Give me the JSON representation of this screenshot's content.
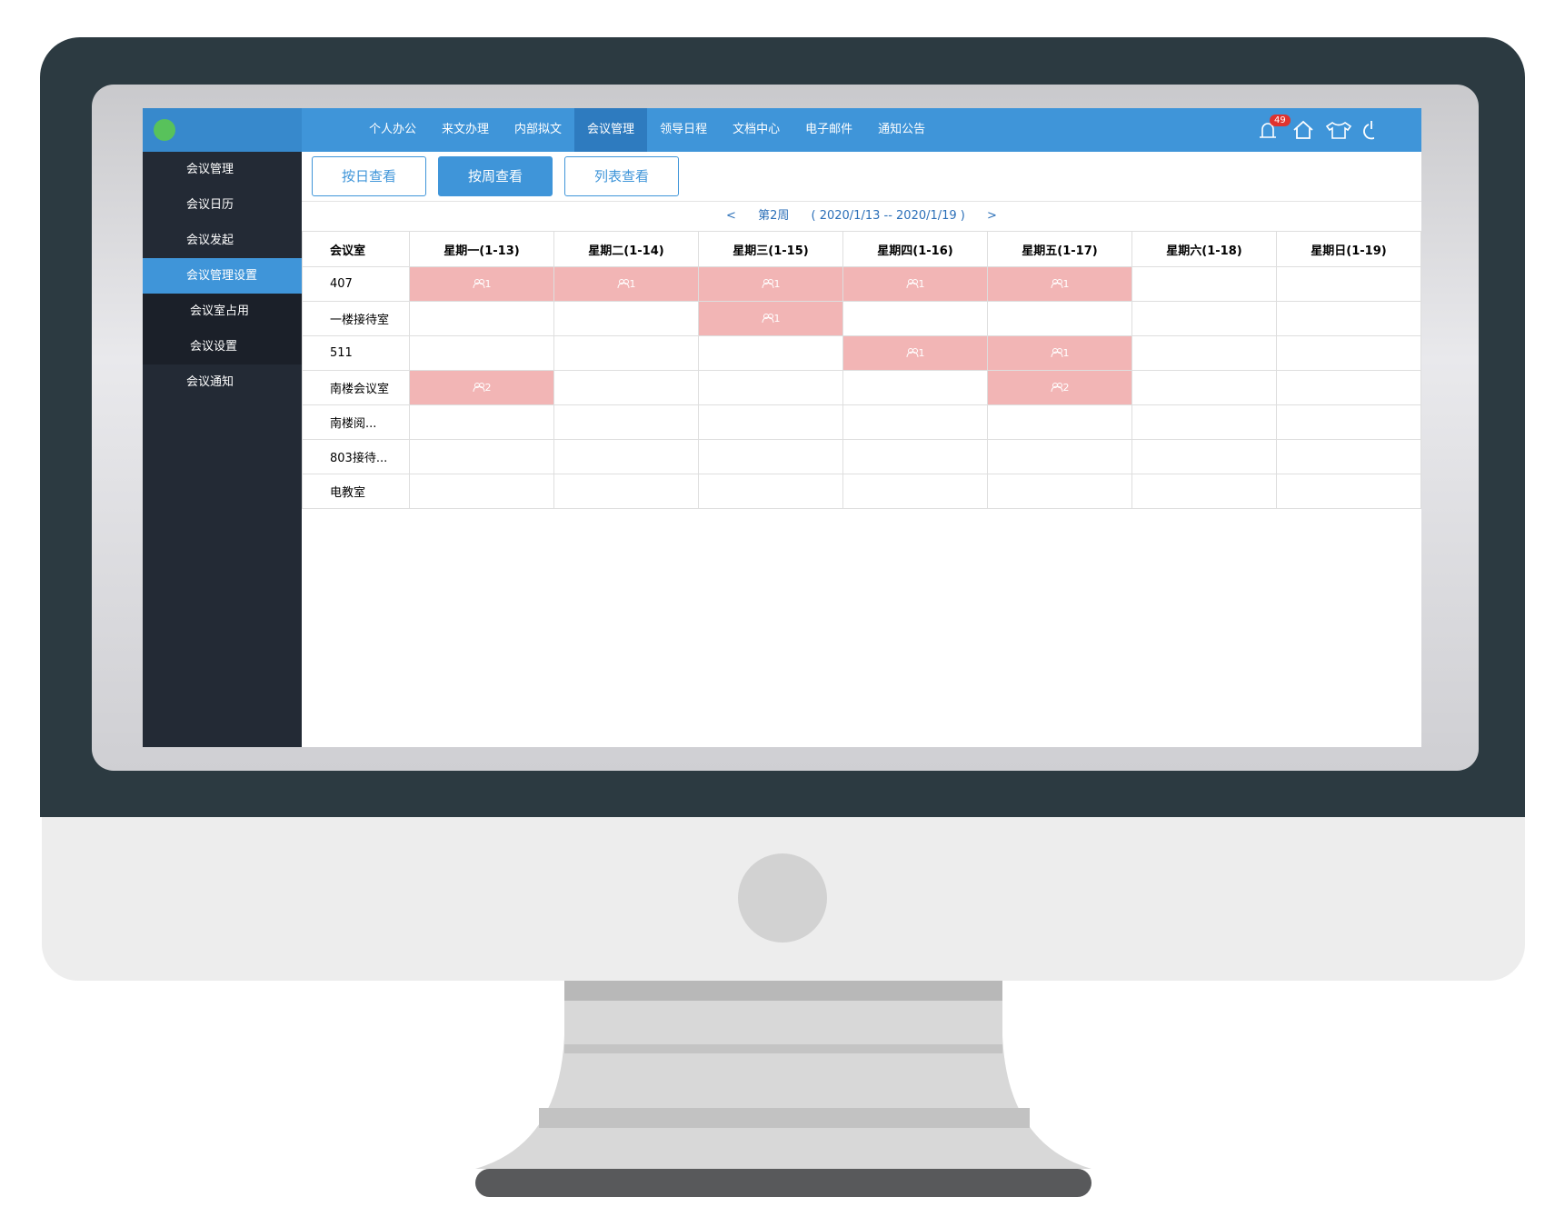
{
  "top_nav": {
    "items": [
      "个人办公",
      "来文办理",
      "内部拟文",
      "会议管理",
      "领导日程",
      "文档中心",
      "电子邮件",
      "通知公告"
    ],
    "active": "会议管理",
    "notification_count": "49"
  },
  "sidebar": {
    "items": [
      "会议管理",
      "会议日历",
      "会议发起",
      "会议管理设置",
      "会议室占用",
      "会议设置",
      "会议通知"
    ],
    "active": "会议管理设置"
  },
  "view_buttons": {
    "items": [
      "按日查看",
      "按周查看",
      "列表查看"
    ],
    "active": "按周查看"
  },
  "week_nav": {
    "prev": "<",
    "week": "第2周",
    "range": "( 2020/1/13 -- 2020/1/19 )",
    "next": ">"
  },
  "table": {
    "header": [
      "会议室",
      "星期一(1-13)",
      "星期二(1-14)",
      "星期三(1-15)",
      "星期四(1-16)",
      "星期五(1-17)",
      "星期六(1-18)",
      "星期日(1-19)"
    ],
    "rows": [
      {
        "room": "407",
        "cells": [
          1,
          1,
          1,
          1,
          1,
          null,
          null
        ]
      },
      {
        "room": "一楼接待室",
        "cells": [
          null,
          null,
          1,
          null,
          null,
          null,
          null
        ]
      },
      {
        "room": "511",
        "cells": [
          null,
          null,
          null,
          1,
          1,
          null,
          null
        ]
      },
      {
        "room": "南楼会议室",
        "cells": [
          2,
          null,
          null,
          null,
          2,
          null,
          null
        ]
      },
      {
        "room": "南楼阅...",
        "cells": [
          null,
          null,
          null,
          null,
          null,
          null,
          null
        ]
      },
      {
        "room": "803接待...",
        "cells": [
          null,
          null,
          null,
          null,
          null,
          null,
          null
        ]
      },
      {
        "room": "电教室",
        "cells": [
          null,
          null,
          null,
          null,
          null,
          null,
          null
        ]
      }
    ]
  }
}
